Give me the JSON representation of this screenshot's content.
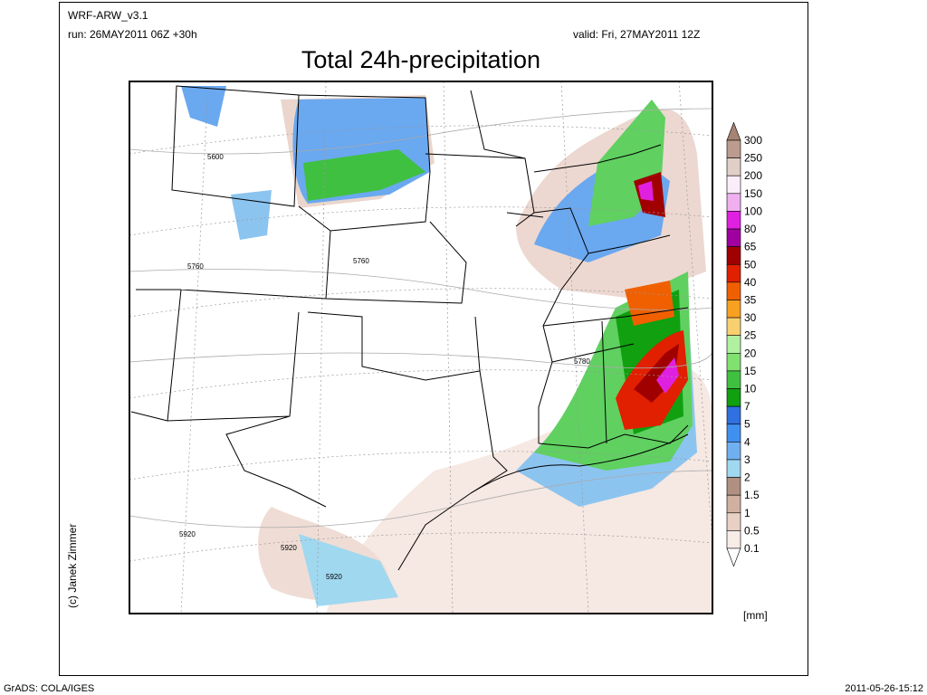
{
  "header": {
    "model": "WRF-ARW_v3.1",
    "run": "run: 26MAY2011 06Z +30h",
    "valid": "valid: Fri, 27MAY2011 12Z",
    "title": "Total 24h-precipitation"
  },
  "contour_labels": [
    "5600",
    "5760",
    "5760",
    "5780",
    "5920",
    "5920",
    "5920"
  ],
  "legend": {
    "labels": [
      300,
      250,
      200,
      150,
      100,
      80,
      65,
      50,
      40,
      35,
      30,
      25,
      20,
      15,
      10,
      7,
      5,
      4,
      3,
      2,
      1.5,
      1,
      0.5,
      0.1
    ],
    "colors": [
      "#a58474",
      "#bc9c8e",
      "#e0cfc6",
      "#fbeefa",
      "#f0b0f0",
      "#e020e0",
      "#a000a0",
      "#a00000",
      "#e02000",
      "#f06000",
      "#f8a020",
      "#f8d070",
      "#b0f0a0",
      "#80e070",
      "#40c040",
      "#10a010",
      "#3070e0",
      "#4090f0",
      "#70b0f0",
      "#a0d8f0",
      "#b09080",
      "#d0b0a0",
      "#e8d0c4",
      "#f8ece6",
      "#ffffff"
    ],
    "unit": "[mm]"
  },
  "credit": "(c) Janek Zimmer",
  "footer": {
    "left": "GrADS: COLA/IGES",
    "right": "2011-05-26-15:12"
  }
}
